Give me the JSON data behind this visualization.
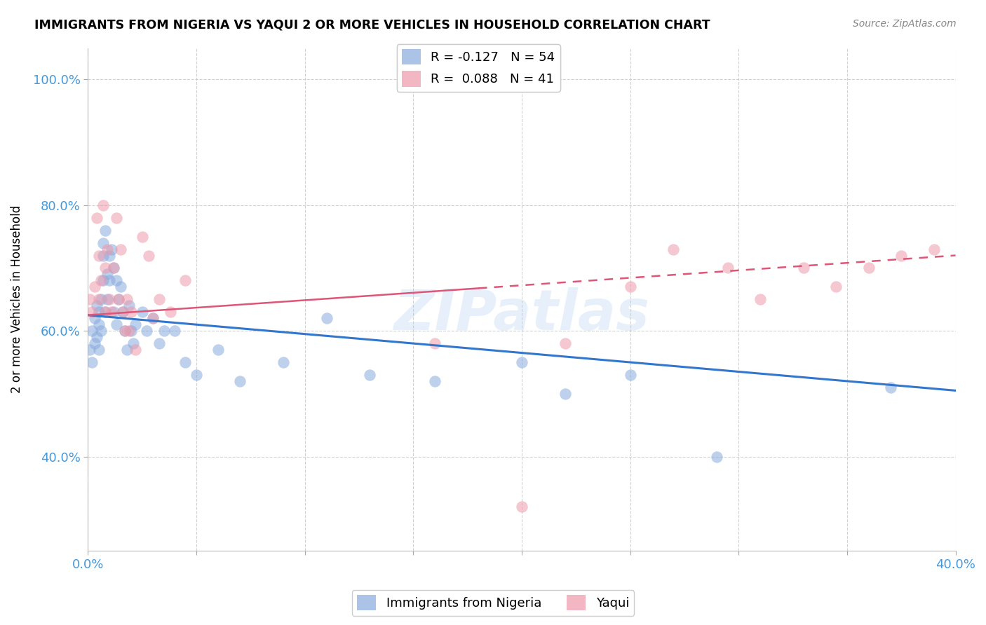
{
  "title": "IMMIGRANTS FROM NIGERIA VS YAQUI 2 OR MORE VEHICLES IN HOUSEHOLD CORRELATION CHART",
  "source": "Source: ZipAtlas.com",
  "ylabel": "2 or more Vehicles in Household",
  "xlim": [
    0.0,
    0.4
  ],
  "ylim": [
    0.25,
    1.05
  ],
  "x_tick_positions": [
    0.0,
    0.05,
    0.1,
    0.15,
    0.2,
    0.25,
    0.3,
    0.35,
    0.4
  ],
  "x_tick_labels": [
    "0.0%",
    "",
    "",
    "",
    "",
    "",
    "",
    "",
    "40.0%"
  ],
  "y_tick_positions": [
    0.4,
    0.6,
    0.8,
    1.0
  ],
  "y_tick_labels": [
    "40.0%",
    "60.0%",
    "80.0%",
    "100.0%"
  ],
  "legend1_label": "R = -0.127   N = 54",
  "legend2_label": "R =  0.088   N = 41",
  "blue_color": "#88aadd",
  "pink_color": "#ee99aa",
  "blue_line_color": "#3377cc",
  "pink_line_color": "#dd5577",
  "watermark": "ZIPatlas",
  "blue_x": [
    0.001,
    0.002,
    0.002,
    0.003,
    0.003,
    0.004,
    0.004,
    0.005,
    0.005,
    0.005,
    0.006,
    0.006,
    0.007,
    0.007,
    0.007,
    0.008,
    0.008,
    0.009,
    0.009,
    0.01,
    0.01,
    0.011,
    0.012,
    0.012,
    0.013,
    0.013,
    0.014,
    0.015,
    0.016,
    0.017,
    0.018,
    0.019,
    0.02,
    0.021,
    0.022,
    0.025,
    0.027,
    0.03,
    0.033,
    0.035,
    0.04,
    0.045,
    0.05,
    0.06,
    0.07,
    0.09,
    0.11,
    0.13,
    0.16,
    0.2,
    0.22,
    0.25,
    0.29,
    0.37
  ],
  "blue_y": [
    0.57,
    0.6,
    0.55,
    0.62,
    0.58,
    0.64,
    0.59,
    0.63,
    0.57,
    0.61,
    0.65,
    0.6,
    0.74,
    0.72,
    0.68,
    0.76,
    0.63,
    0.69,
    0.65,
    0.72,
    0.68,
    0.73,
    0.7,
    0.63,
    0.68,
    0.61,
    0.65,
    0.67,
    0.63,
    0.6,
    0.57,
    0.64,
    0.6,
    0.58,
    0.61,
    0.63,
    0.6,
    0.62,
    0.58,
    0.6,
    0.6,
    0.55,
    0.53,
    0.57,
    0.52,
    0.55,
    0.62,
    0.53,
    0.52,
    0.55,
    0.5,
    0.53,
    0.4,
    0.51
  ],
  "pink_x": [
    0.001,
    0.002,
    0.003,
    0.004,
    0.005,
    0.005,
    0.006,
    0.007,
    0.008,
    0.008,
    0.009,
    0.01,
    0.011,
    0.012,
    0.013,
    0.014,
    0.015,
    0.016,
    0.017,
    0.018,
    0.019,
    0.02,
    0.022,
    0.025,
    0.028,
    0.03,
    0.033,
    0.038,
    0.045,
    0.16,
    0.2,
    0.22,
    0.25,
    0.27,
    0.295,
    0.31,
    0.33,
    0.345,
    0.36,
    0.375,
    0.39
  ],
  "pink_y": [
    0.65,
    0.63,
    0.67,
    0.78,
    0.65,
    0.72,
    0.68,
    0.8,
    0.63,
    0.7,
    0.73,
    0.65,
    0.63,
    0.7,
    0.78,
    0.65,
    0.73,
    0.63,
    0.6,
    0.65,
    0.6,
    0.63,
    0.57,
    0.75,
    0.72,
    0.62,
    0.65,
    0.63,
    0.68,
    0.58,
    0.32,
    0.58,
    0.67,
    0.73,
    0.7,
    0.65,
    0.7,
    0.67,
    0.7,
    0.72,
    0.73
  ]
}
